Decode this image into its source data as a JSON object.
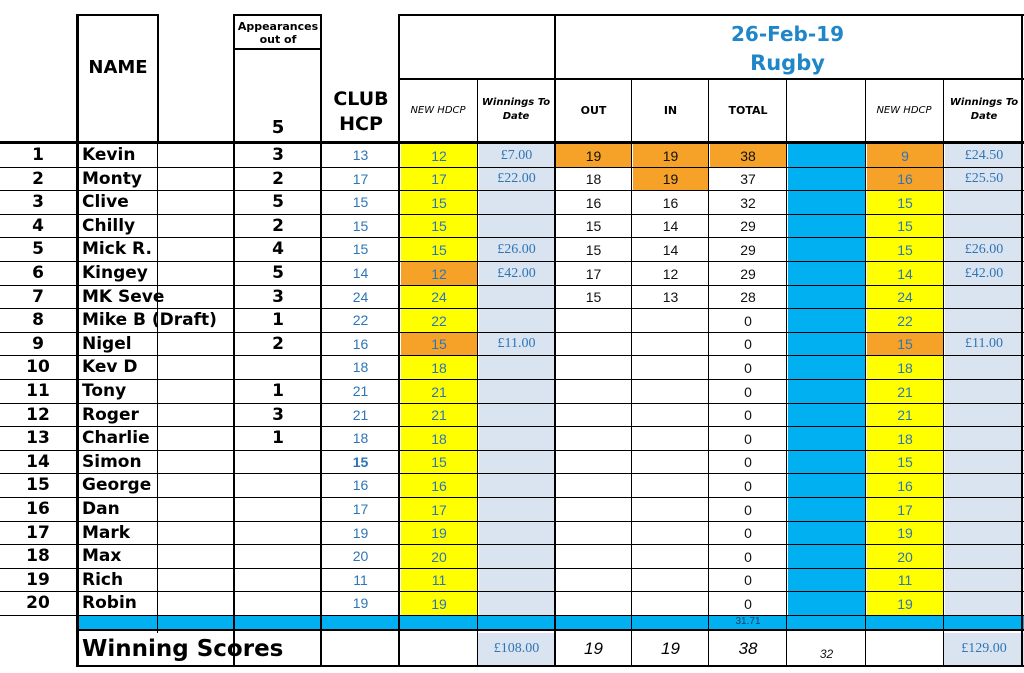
{
  "sheet_title": {
    "date": "26-Feb-19",
    "venue": "Rugby"
  },
  "headers": {
    "name": "NAME",
    "appearances": "Appearances out of",
    "appearances_out_of": "5",
    "club_hcp": "CLUB HCP",
    "new_hdcp": "NEW HDCP",
    "winnings_to_date": "Winnings To Date",
    "out": "OUT",
    "in": "IN",
    "total": "TOTAL"
  },
  "colors": {
    "yellow": "#ffff00",
    "orange": "#f6a229",
    "light_blue": "#dae3f0",
    "cyan": "#00b0f0",
    "text_blue": "#2e75b6",
    "title_blue": "#1f86c8"
  },
  "rows": [
    {
      "idx": "1",
      "name": "Kevin",
      "apps": "3",
      "club_hcp": "13",
      "new_hdcp": "12",
      "new_hdcp_color": "yellow",
      "winnings": "£7.00",
      "out": "19",
      "out_hl": true,
      "in": "19",
      "in_hl": true,
      "total": "38",
      "total_hl": true,
      "new_hdcp2": "9",
      "new_hdcp2_color": "orange",
      "winnings2": "£24.50"
    },
    {
      "idx": "2",
      "name": "Monty",
      "apps": "2",
      "club_hcp": "17",
      "new_hdcp": "17",
      "new_hdcp_color": "yellow",
      "winnings": "£22.00",
      "out": "18",
      "out_hl": false,
      "in": "19",
      "in_hl": true,
      "total": "37",
      "total_hl": false,
      "new_hdcp2": "16",
      "new_hdcp2_color": "orange",
      "winnings2": "£25.50"
    },
    {
      "idx": "3",
      "name": "Clive",
      "apps": "5",
      "club_hcp": "15",
      "new_hdcp": "15",
      "new_hdcp_color": "yellow",
      "winnings": "",
      "out": "16",
      "out_hl": false,
      "in": "16",
      "in_hl": false,
      "total": "32",
      "total_hl": false,
      "new_hdcp2": "15",
      "new_hdcp2_color": "yellow",
      "winnings2": ""
    },
    {
      "idx": "4",
      "name": "Chilly",
      "apps": "2",
      "club_hcp": "15",
      "new_hdcp": "15",
      "new_hdcp_color": "yellow",
      "winnings": "",
      "out": "15",
      "out_hl": false,
      "in": "14",
      "in_hl": false,
      "total": "29",
      "total_hl": false,
      "new_hdcp2": "15",
      "new_hdcp2_color": "yellow",
      "winnings2": ""
    },
    {
      "idx": "5",
      "name": "Mick R.",
      "apps": "4",
      "club_hcp": "15",
      "new_hdcp": "15",
      "new_hdcp_color": "yellow",
      "winnings": "£26.00",
      "out": "15",
      "out_hl": false,
      "in": "14",
      "in_hl": false,
      "total": "29",
      "total_hl": false,
      "new_hdcp2": "15",
      "new_hdcp2_color": "yellow",
      "winnings2": "£26.00"
    },
    {
      "idx": "6",
      "name": "Kingey",
      "apps": "5",
      "club_hcp": "14",
      "new_hdcp": "12",
      "new_hdcp_color": "orange",
      "winnings": "£42.00",
      "out": "17",
      "out_hl": false,
      "in": "12",
      "in_hl": false,
      "total": "29",
      "total_hl": false,
      "new_hdcp2": "14",
      "new_hdcp2_color": "yellow",
      "winnings2": "£42.00"
    },
    {
      "idx": "7",
      "name": "MK Seve",
      "apps": "3",
      "club_hcp": "24",
      "new_hdcp": "24",
      "new_hdcp_color": "yellow",
      "winnings": "",
      "out": "15",
      "out_hl": false,
      "in": "13",
      "in_hl": false,
      "total": "28",
      "total_hl": false,
      "new_hdcp2": "24",
      "new_hdcp2_color": "yellow",
      "winnings2": ""
    },
    {
      "idx": "8",
      "name": "Mike B (Draft)",
      "apps": "1",
      "club_hcp": "22",
      "new_hdcp": "22",
      "new_hdcp_color": "yellow",
      "winnings": "",
      "out": "",
      "out_hl": false,
      "in": "",
      "in_hl": false,
      "total": "0",
      "total_hl": false,
      "new_hdcp2": "22",
      "new_hdcp2_color": "yellow",
      "winnings2": ""
    },
    {
      "idx": "9",
      "name": "Nigel",
      "apps": "2",
      "club_hcp": "16",
      "new_hdcp": "15",
      "new_hdcp_color": "orange",
      "winnings": "£11.00",
      "out": "",
      "out_hl": false,
      "in": "",
      "in_hl": false,
      "total": "0",
      "total_hl": false,
      "new_hdcp2": "15",
      "new_hdcp2_color": "orange",
      "winnings2": "£11.00"
    },
    {
      "idx": "10",
      "name": "Kev D",
      "apps": "",
      "club_hcp": "18",
      "new_hdcp": "18",
      "new_hdcp_color": "yellow",
      "winnings": "",
      "out": "",
      "out_hl": false,
      "in": "",
      "in_hl": false,
      "total": "0",
      "total_hl": false,
      "new_hdcp2": "18",
      "new_hdcp2_color": "yellow",
      "winnings2": ""
    },
    {
      "idx": "11",
      "name": "Tony",
      "apps": "1",
      "club_hcp": "21",
      "new_hdcp": "21",
      "new_hdcp_color": "yellow",
      "winnings": "",
      "out": "",
      "out_hl": false,
      "in": "",
      "in_hl": false,
      "total": "0",
      "total_hl": false,
      "new_hdcp2": "21",
      "new_hdcp2_color": "yellow",
      "winnings2": ""
    },
    {
      "idx": "12",
      "name": "Roger",
      "apps": "3",
      "club_hcp": "21",
      "new_hdcp": "21",
      "new_hdcp_color": "yellow",
      "winnings": "",
      "out": "",
      "out_hl": false,
      "in": "",
      "in_hl": false,
      "total": "0",
      "total_hl": false,
      "new_hdcp2": "21",
      "new_hdcp2_color": "yellow",
      "winnings2": ""
    },
    {
      "idx": "13",
      "name": "Charlie",
      "apps": "1",
      "club_hcp": "18",
      "new_hdcp": "18",
      "new_hdcp_color": "yellow",
      "winnings": "",
      "out": "",
      "out_hl": false,
      "in": "",
      "in_hl": false,
      "total": "0",
      "total_hl": false,
      "new_hdcp2": "18",
      "new_hdcp2_color": "yellow",
      "winnings2": ""
    },
    {
      "idx": "14",
      "name": "Simon",
      "apps": "",
      "club_hcp": "15",
      "club_bold": true,
      "new_hdcp": "15",
      "new_hdcp_color": "yellow",
      "winnings": "",
      "out": "",
      "out_hl": false,
      "in": "",
      "in_hl": false,
      "total": "0",
      "total_hl": false,
      "new_hdcp2": "15",
      "new_hdcp2_color": "yellow",
      "winnings2": ""
    },
    {
      "idx": "15",
      "name": "George",
      "apps": "",
      "club_hcp": "16",
      "new_hdcp": "16",
      "new_hdcp_color": "yellow",
      "winnings": "",
      "out": "",
      "out_hl": false,
      "in": "",
      "in_hl": false,
      "total": "0",
      "total_hl": false,
      "new_hdcp2": "16",
      "new_hdcp2_color": "yellow",
      "winnings2": ""
    },
    {
      "idx": "16",
      "name": "Dan",
      "apps": "",
      "club_hcp": "17",
      "new_hdcp": "17",
      "new_hdcp_color": "yellow",
      "winnings": "",
      "out": "",
      "out_hl": false,
      "in": "",
      "in_hl": false,
      "total": "0",
      "total_hl": false,
      "new_hdcp2": "17",
      "new_hdcp2_color": "yellow",
      "winnings2": ""
    },
    {
      "idx": "17",
      "name": "Mark",
      "apps": "",
      "club_hcp": "19",
      "new_hdcp": "19",
      "new_hdcp_color": "yellow",
      "winnings": "",
      "out": "",
      "out_hl": false,
      "in": "",
      "in_hl": false,
      "total": "0",
      "total_hl": false,
      "new_hdcp2": "19",
      "new_hdcp2_color": "yellow",
      "winnings2": ""
    },
    {
      "idx": "18",
      "name": "Max",
      "apps": "",
      "club_hcp": "20",
      "new_hdcp": "20",
      "new_hdcp_color": "yellow",
      "winnings": "",
      "out": "",
      "out_hl": false,
      "in": "",
      "in_hl": false,
      "total": "0",
      "total_hl": false,
      "new_hdcp2": "20",
      "new_hdcp2_color": "yellow",
      "winnings2": ""
    },
    {
      "idx": "19",
      "name": "Rich",
      "apps": "",
      "club_hcp": "11",
      "new_hdcp": "11",
      "new_hdcp_color": "yellow",
      "winnings": "",
      "out": "",
      "out_hl": false,
      "in": "",
      "in_hl": false,
      "total": "0",
      "total_hl": false,
      "new_hdcp2": "11",
      "new_hdcp2_color": "yellow",
      "winnings2": ""
    },
    {
      "idx": "20",
      "name": "Robin",
      "apps": "",
      "club_hcp": "19",
      "new_hdcp": "19",
      "new_hdcp_color": "yellow",
      "winnings": "",
      "out": "",
      "out_hl": false,
      "in": "",
      "in_hl": false,
      "total": "0",
      "total_hl": false,
      "new_hdcp2": "19",
      "new_hdcp2_color": "yellow",
      "winnings2": ""
    }
  ],
  "cyan_row": {
    "total_avg": "31.71"
  },
  "footer": {
    "label": "Winning Scores",
    "winnings": "£108.00",
    "out": "19",
    "in": "19",
    "total": "38",
    "extra": "32",
    "winnings2": "£129.00"
  }
}
